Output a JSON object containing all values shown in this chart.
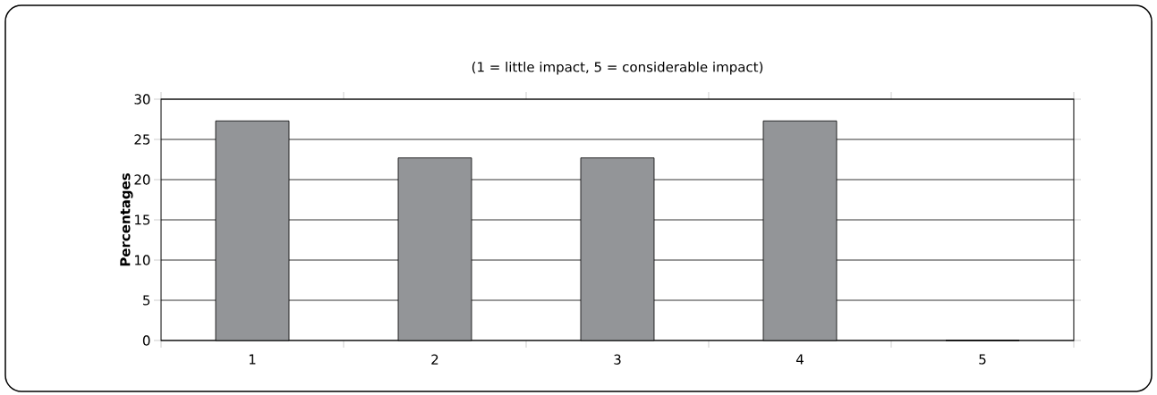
{
  "chart_data": {
    "type": "bar",
    "title": "(1 = little impact, 5 = considerable impact)",
    "ylabel": "Percentages",
    "categories": [
      "1",
      "2",
      "3",
      "4",
      "5"
    ],
    "values": [
      27.3,
      22.7,
      22.7,
      27.3,
      0
    ],
    "color": "#939598",
    "ylim": [
      0,
      30
    ],
    "yticks": [
      0,
      5,
      10,
      15,
      20,
      25,
      30
    ],
    "grid": "y"
  }
}
